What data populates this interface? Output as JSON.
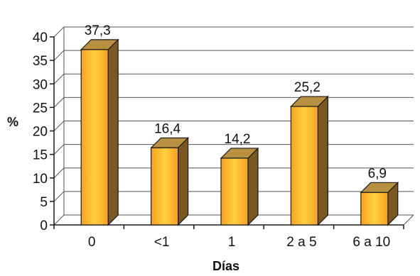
{
  "chart_data": {
    "type": "bar",
    "style": "3d-column",
    "categories": [
      "0",
      "<1",
      "1",
      "2 a 5",
      "6 a 10"
    ],
    "values": [
      37.3,
      16.4,
      14.2,
      25.2,
      6.9
    ],
    "value_labels": [
      "37,3",
      "16,4",
      "14,2",
      "25,2",
      "6,9"
    ],
    "title": "",
    "xlabel": "Días",
    "ylabel": "%",
    "ylim": [
      0,
      40
    ],
    "yticks": [
      0,
      5,
      10,
      15,
      20,
      25,
      30,
      35,
      40
    ],
    "grid": true,
    "legend": "none",
    "colors": {
      "bar_front": "#f8a020",
      "bar_front_light": "#ffd040",
      "bar_top": "#b89040",
      "bar_side": "#7a5820",
      "outline": "#1a1a1a",
      "grid": "#555555"
    }
  }
}
